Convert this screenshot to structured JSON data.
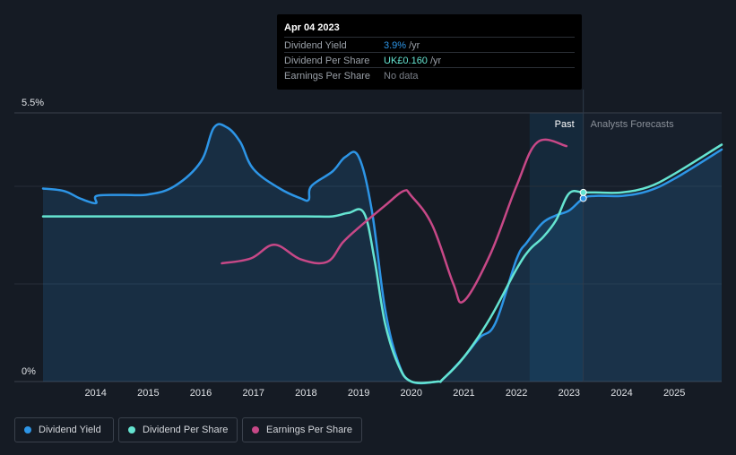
{
  "tooltip": {
    "date": "Apr 04 2023",
    "rows": [
      {
        "label": "Dividend Yield",
        "value": "3.9%",
        "unit": "/yr",
        "color": "#2d95e6"
      },
      {
        "label": "Dividend Per Share",
        "value": "UK£0.160",
        "unit": "/yr",
        "color": "#65e4d1"
      },
      {
        "label": "Earnings Per Share",
        "value": "No data",
        "unit": "",
        "color": "#7b8089"
      }
    ]
  },
  "legend": [
    {
      "label": "Dividend Yield",
      "color": "#2d95e6"
    },
    {
      "label": "Dividend Per Share",
      "color": "#65e4d1"
    },
    {
      "label": "Earnings Per Share",
      "color": "#c74887"
    }
  ],
  "chart_data": {
    "type": "line",
    "y_labels": [
      "5.5%",
      "0%"
    ],
    "ylim": [
      0,
      5.5
    ],
    "x_ticks": [
      2014,
      2015,
      2016,
      2017,
      2018,
      2019,
      2020,
      2021,
      2022,
      2023,
      2024,
      2025
    ],
    "xlim": [
      2013.0,
      2025.9
    ],
    "past_label": "Past",
    "forecast_label": "Analysts Forecasts",
    "past_region": [
      2022.25,
      2023.27
    ],
    "forecast_start": 2023.27,
    "series": [
      {
        "name": "Dividend Yield",
        "color": "#2d95e6",
        "fill": true,
        "points": [
          [
            2013.0,
            3.95
          ],
          [
            2013.4,
            3.9
          ],
          [
            2013.7,
            3.75
          ],
          [
            2014.0,
            3.65
          ],
          [
            2014.02,
            3.8
          ],
          [
            2014.5,
            3.82
          ],
          [
            2015.0,
            3.83
          ],
          [
            2015.5,
            4.0
          ],
          [
            2016.0,
            4.5
          ],
          [
            2016.25,
            5.2
          ],
          [
            2016.5,
            5.2
          ],
          [
            2016.75,
            4.9
          ],
          [
            2017.0,
            4.35
          ],
          [
            2017.5,
            3.95
          ],
          [
            2017.9,
            3.75
          ],
          [
            2018.05,
            3.72
          ],
          [
            2018.1,
            4.0
          ],
          [
            2018.5,
            4.3
          ],
          [
            2018.75,
            4.6
          ],
          [
            2019.0,
            4.6
          ],
          [
            2019.25,
            3.5
          ],
          [
            2019.5,
            1.5
          ],
          [
            2019.75,
            0.4
          ],
          [
            2020.0,
            0.0
          ],
          [
            2020.5,
            0.0
          ],
          [
            2020.6,
            0.05
          ],
          [
            2021.0,
            0.5
          ],
          [
            2021.3,
            0.9
          ],
          [
            2021.6,
            1.2
          ],
          [
            2022.0,
            2.5
          ],
          [
            2022.2,
            2.85
          ],
          [
            2022.5,
            3.25
          ],
          [
            2022.75,
            3.4
          ],
          [
            2023.0,
            3.5
          ],
          [
            2023.27,
            3.75
          ],
          [
            2023.5,
            3.8
          ],
          [
            2024.0,
            3.8
          ],
          [
            2024.5,
            3.9
          ],
          [
            2025.0,
            4.15
          ],
          [
            2025.9,
            4.75
          ]
        ]
      },
      {
        "name": "Dividend Per Share",
        "color": "#65e4d1",
        "fill": false,
        "points": [
          [
            2013.0,
            3.38
          ],
          [
            2014.0,
            3.38
          ],
          [
            2015.0,
            3.38
          ],
          [
            2016.0,
            3.38
          ],
          [
            2017.0,
            3.38
          ],
          [
            2018.0,
            3.38
          ],
          [
            2018.5,
            3.38
          ],
          [
            2018.8,
            3.45
          ],
          [
            2019.1,
            3.45
          ],
          [
            2019.3,
            2.5
          ],
          [
            2019.5,
            1.2
          ],
          [
            2019.75,
            0.35
          ],
          [
            2020.0,
            0.0
          ],
          [
            2020.5,
            0.0
          ],
          [
            2020.6,
            0.05
          ],
          [
            2021.0,
            0.5
          ],
          [
            2021.5,
            1.3
          ],
          [
            2022.0,
            2.3
          ],
          [
            2022.25,
            2.7
          ],
          [
            2022.5,
            2.95
          ],
          [
            2022.75,
            3.3
          ],
          [
            2023.0,
            3.85
          ],
          [
            2023.27,
            3.87
          ],
          [
            2023.5,
            3.87
          ],
          [
            2024.0,
            3.87
          ],
          [
            2024.5,
            3.98
          ],
          [
            2025.0,
            4.25
          ],
          [
            2025.9,
            4.85
          ]
        ]
      },
      {
        "name": "Earnings Per Share",
        "color": "#c74887",
        "fill": false,
        "points": [
          [
            2016.4,
            2.42
          ],
          [
            2016.95,
            2.52
          ],
          [
            2017.4,
            2.8
          ],
          [
            2017.9,
            2.5
          ],
          [
            2018.4,
            2.45
          ],
          [
            2018.7,
            2.85
          ],
          [
            2019.0,
            3.15
          ],
          [
            2019.5,
            3.6
          ],
          [
            2019.85,
            3.9
          ],
          [
            2020.0,
            3.8
          ],
          [
            2020.4,
            3.2
          ],
          [
            2020.8,
            2.0
          ],
          [
            2021.0,
            1.65
          ],
          [
            2021.5,
            2.6
          ],
          [
            2022.0,
            4.0
          ],
          [
            2022.4,
            4.9
          ],
          [
            2022.95,
            4.82
          ]
        ]
      }
    ]
  }
}
